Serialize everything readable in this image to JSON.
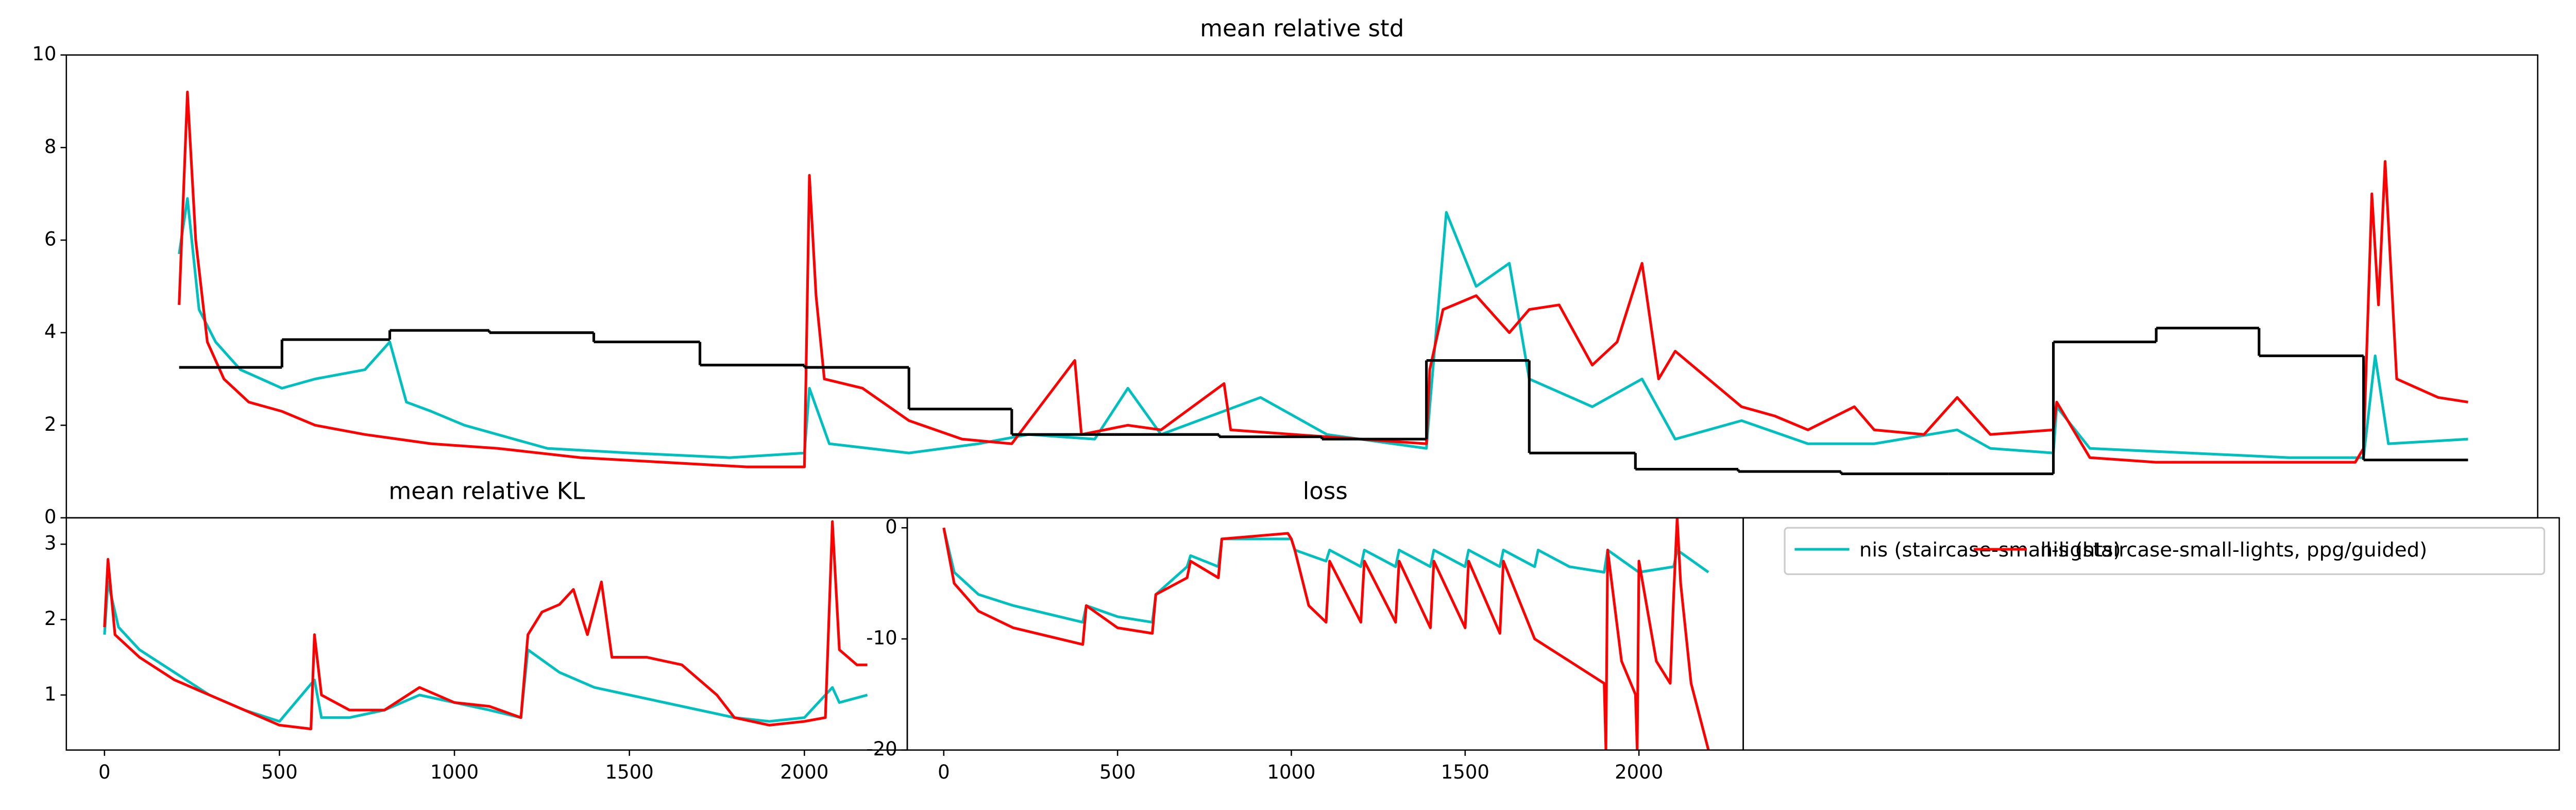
{
  "chart_data": [
    {
      "type": "line",
      "title": "mean relative std",
      "xlim": [
        0,
        1490
      ],
      "ylim": [
        0,
        10
      ],
      "yticks": [
        0,
        2,
        4,
        6,
        8,
        10
      ],
      "series": [
        {
          "color": "#00bfbf",
          "x": [
            68,
            73,
            80,
            90,
            105,
            130,
            150,
            180,
            195,
            205,
            220,
            240,
            260,
            290,
            340,
            400,
            445,
            448,
            460,
            508,
            550,
            580,
            620,
            640,
            660,
            720,
            760,
            820,
            822,
            832,
            850,
            870,
            882,
            920,
            950,
            970,
            1010,
            1050,
            1090,
            1140,
            1160,
            1198,
            1200,
            1220,
            1280,
            1340,
            1385,
            1392,
            1400,
            1448
          ],
          "values": [
            5.7,
            6.9,
            4.5,
            3.8,
            3.2,
            2.8,
            3.0,
            3.2,
            3.8,
            2.5,
            2.3,
            2.0,
            1.8,
            1.5,
            1.4,
            1.3,
            1.4,
            2.8,
            1.6,
            1.4,
            1.6,
            1.8,
            1.7,
            2.8,
            1.8,
            2.6,
            1.8,
            1.5,
            2.4,
            6.6,
            5.0,
            5.5,
            3.0,
            2.4,
            3.0,
            1.7,
            2.1,
            1.6,
            1.6,
            1.9,
            1.5,
            1.4,
            2.4,
            1.5,
            1.4,
            1.3,
            1.3,
            3.5,
            1.6,
            1.7
          ]
        },
        {
          "color": "#ff0000",
          "x": [
            68,
            73,
            78,
            85,
            95,
            110,
            130,
            150,
            180,
            220,
            260,
            310,
            360,
            410,
            445,
            448,
            452,
            457,
            480,
            508,
            540,
            570,
            608,
            612,
            640,
            660,
            698,
            702,
            740,
            780,
            820,
            822,
            830,
            850,
            870,
            882,
            900,
            920,
            935,
            950,
            960,
            970,
            990,
            1010,
            1030,
            1050,
            1078,
            1090,
            1120,
            1140,
            1160,
            1198,
            1200,
            1220,
            1260,
            1320,
            1380,
            1385,
            1390,
            1394,
            1398,
            1405,
            1430,
            1448
          ],
          "values": [
            4.6,
            9.2,
            6,
            3.8,
            3.0,
            2.5,
            2.3,
            2.0,
            1.8,
            1.6,
            1.5,
            1.3,
            1.2,
            1.1,
            1.1,
            7.4,
            4.8,
            3.0,
            2.8,
            2.1,
            1.7,
            1.6,
            3.4,
            1.8,
            2.0,
            1.9,
            2.9,
            1.9,
            1.8,
            1.7,
            1.6,
            3.2,
            4.5,
            4.8,
            4.0,
            4.5,
            4.6,
            3.3,
            3.8,
            5.5,
            3.0,
            3.6,
            3.0,
            2.4,
            2.2,
            1.9,
            2.4,
            1.9,
            1.8,
            2.6,
            1.8,
            1.9,
            2.5,
            1.3,
            1.2,
            1.2,
            1.2,
            1.5,
            7.0,
            4.6,
            7.7,
            3.0,
            2.6,
            2.5
          ]
        },
        {
          "color": "#000000",
          "step": "post",
          "x": [
            68,
            130,
            195,
            255,
            318,
            382,
            445,
            508,
            570,
            632,
            695,
            757,
            820,
            882,
            946,
            1008,
            1070,
            1135,
            1198,
            1260,
            1322,
            1385,
            1448
          ],
          "values": [
            3.25,
            3.85,
            4.05,
            4.0,
            3.8,
            3.3,
            3.25,
            2.35,
            1.8,
            1.8,
            1.75,
            1.7,
            3.4,
            1.4,
            1.05,
            1.0,
            0.95,
            0.95,
            3.8,
            4.1,
            3.5,
            1.25,
            1.25
          ]
        }
      ]
    },
    {
      "type": "line",
      "title": "mean relative KL",
      "xlim": [
        -109,
        2294
      ],
      "ylim": [
        0.27,
        3.35
      ],
      "xticks": [
        0,
        500,
        1000,
        1500,
        2000
      ],
      "yticks": [
        1,
        2,
        3
      ],
      "series": [
        {
          "color": "#00bfbf",
          "x": [
            0,
            10,
            40,
            100,
            200,
            300,
            400,
            500,
            600,
            620,
            700,
            800,
            900,
            1000,
            1100,
            1190,
            1210,
            1300,
            1400,
            1500,
            1600,
            1700,
            1800,
            1900,
            2000,
            2080,
            2100,
            2180
          ],
          "values": [
            1.8,
            2.5,
            1.9,
            1.6,
            1.3,
            1.0,
            0.8,
            0.65,
            1.2,
            0.7,
            0.7,
            0.8,
            1.0,
            0.9,
            0.8,
            0.7,
            1.6,
            1.3,
            1.1,
            1.0,
            0.9,
            0.8,
            0.7,
            0.65,
            0.7,
            1.1,
            0.9,
            1.0
          ]
        },
        {
          "color": "#ff0000",
          "x": [
            0,
            10,
            30,
            100,
            200,
            300,
            400,
            500,
            590,
            600,
            620,
            700,
            800,
            900,
            1000,
            1100,
            1190,
            1210,
            1250,
            1300,
            1340,
            1380,
            1420,
            1450,
            1550,
            1650,
            1700,
            1750,
            1800,
            1900,
            2000,
            2060,
            2080,
            2100,
            2150,
            2180
          ],
          "values": [
            1.9,
            2.8,
            1.8,
            1.5,
            1.2,
            1.0,
            0.8,
            0.6,
            0.55,
            1.8,
            1.0,
            0.8,
            0.8,
            1.1,
            0.9,
            0.85,
            0.7,
            1.8,
            2.1,
            2.2,
            2.4,
            1.8,
            2.5,
            1.5,
            1.5,
            1.4,
            1.2,
            1.0,
            0.7,
            0.6,
            0.65,
            0.7,
            3.3,
            1.6,
            1.4,
            1.4
          ]
        }
      ]
    },
    {
      "type": "line",
      "title": "loss",
      "xlim": [
        -105,
        2300
      ],
      "ylim": [
        -20,
        0.9
      ],
      "xticks": [
        0,
        500,
        1000,
        1500,
        2000
      ],
      "yticks": [
        -20,
        -10,
        0
      ],
      "series": [
        {
          "name": "nis (staircase-small-lights)",
          "color": "#00bfbf",
          "x": [
            0,
            30,
            100,
            200,
            400,
            410,
            500,
            600,
            610,
            700,
            710,
            790,
            800,
            1000,
            1010,
            1100,
            1110,
            1200,
            1210,
            1300,
            1310,
            1400,
            1410,
            1500,
            1510,
            1600,
            1610,
            1700,
            1710,
            1800,
            1900,
            1910,
            2000,
            2100,
            2110,
            2200
          ],
          "values": [
            0,
            -4,
            -6,
            -7,
            -8.5,
            -7,
            -8,
            -8.5,
            -6,
            -3.5,
            -2.5,
            -3.5,
            -1,
            -1,
            -2,
            -3,
            -2,
            -3.5,
            -2,
            -3.5,
            -2,
            -3.5,
            -2,
            -3.5,
            -2,
            -3.5,
            -2,
            -3.5,
            -2,
            -3.5,
            -4,
            -2,
            -4,
            -3.5,
            -2,
            -4
          ]
        },
        {
          "name": "nis (staircase-small-lights, ppg/guided)",
          "color": "#ff0000",
          "x": [
            0,
            30,
            100,
            200,
            400,
            410,
            500,
            600,
            610,
            700,
            710,
            790,
            800,
            990,
            1000,
            1010,
            1050,
            1100,
            1110,
            1200,
            1210,
            1300,
            1310,
            1400,
            1410,
            1500,
            1510,
            1600,
            1610,
            1700,
            1750,
            1800,
            1900,
            1905,
            1910,
            1950,
            1990,
            1995,
            2000,
            2050,
            2090,
            2100,
            2110,
            2120,
            2150,
            2200
          ],
          "values": [
            0,
            -5,
            -7.5,
            -9,
            -10.5,
            -7,
            -9,
            -9.5,
            -6,
            -4.5,
            -3,
            -4.5,
            -1,
            -0.5,
            -1,
            -2,
            -7,
            -8.5,
            -3,
            -8.5,
            -3,
            -8.5,
            -3,
            -9,
            -3,
            -9,
            -3,
            -9.5,
            -3,
            -10,
            -11,
            -12,
            -14,
            -20,
            -2,
            -12,
            -15,
            -20,
            -3,
            -12,
            -14,
            -6,
            0.9,
            -5,
            -14,
            -20
          ]
        }
      ]
    }
  ]
}
